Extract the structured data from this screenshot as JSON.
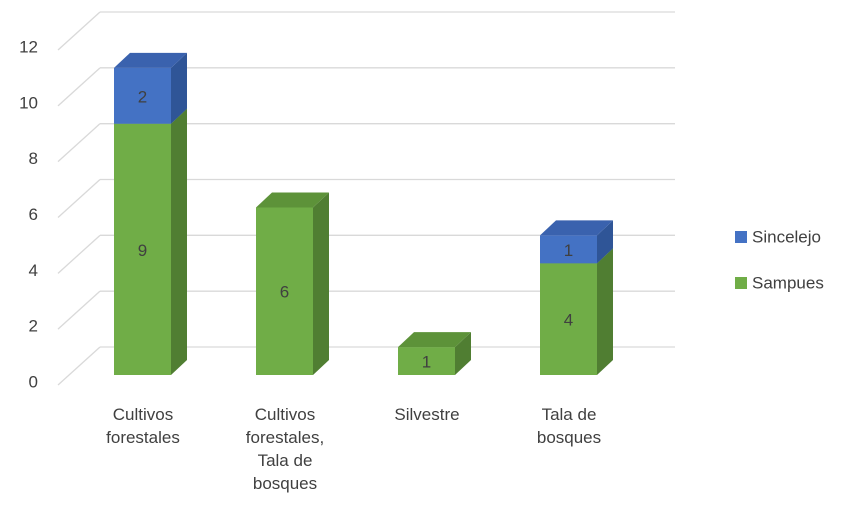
{
  "chart_data": {
    "type": "bar3d_stacked",
    "categories": [
      "Cultivos forestales",
      "Cultivos forestales, Tala de bosques",
      "Silvestre",
      "Tala de bosques"
    ],
    "series": [
      {
        "name": "Sampues",
        "color": "#70ad47",
        "side": "#507e32",
        "top": "#5d9239",
        "values": [
          9,
          6,
          1,
          4
        ]
      },
      {
        "name": "Sincelejo",
        "color": "#4472c4",
        "side": "#2f5597",
        "top": "#3a62ae",
        "values": [
          2,
          null,
          null,
          1
        ]
      }
    ],
    "ylim": [
      0,
      12
    ],
    "yticks": [
      0,
      2,
      4,
      6,
      8,
      10,
      12
    ],
    "grid": true,
    "legend": "right"
  }
}
